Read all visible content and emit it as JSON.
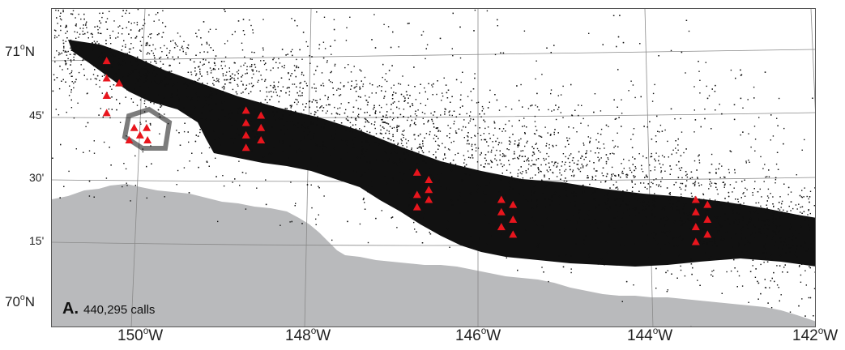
{
  "panel": {
    "letter": "A.",
    "caption": "440,295 calls"
  },
  "colors": {
    "land": "#b9babc",
    "sea": "#ffffff",
    "calls": "#111111",
    "recorders": "#e8151d",
    "grid": "#8a8a8a"
  },
  "latitude_labels": [
    {
      "deg": "71",
      "unit": "o",
      "hem": "N"
    },
    {
      "text": "45'"
    },
    {
      "text": "30'"
    },
    {
      "text": "15'"
    },
    {
      "deg": "70",
      "unit": "o",
      "hem": "N"
    }
  ],
  "longitude_labels": [
    {
      "deg": "150",
      "unit": "o",
      "hem": "W"
    },
    {
      "deg": "148",
      "unit": "o",
      "hem": "W"
    },
    {
      "deg": "146",
      "unit": "o",
      "hem": "W"
    },
    {
      "deg": "144",
      "unit": "o",
      "hem": "W"
    },
    {
      "deg": "142",
      "unit": "o",
      "hem": "W"
    }
  ],
  "recorder_sites": [
    {
      "lon": -150.45,
      "lat": 70.98
    },
    {
      "lon": -150.45,
      "lat": 70.91
    },
    {
      "lon": -150.3,
      "lat": 70.89
    },
    {
      "lon": -150.45,
      "lat": 70.84
    },
    {
      "lon": -150.45,
      "lat": 70.77
    },
    {
      "lon": -150.12,
      "lat": 70.71
    },
    {
      "lon": -149.97,
      "lat": 70.71
    },
    {
      "lon": -150.05,
      "lat": 70.68
    },
    {
      "lon": -150.18,
      "lat": 70.66
    },
    {
      "lon": -149.96,
      "lat": 70.66
    },
    {
      "lon": -148.78,
      "lat": 70.78
    },
    {
      "lon": -148.6,
      "lat": 70.76
    },
    {
      "lon": -148.78,
      "lat": 70.73
    },
    {
      "lon": -148.6,
      "lat": 70.71
    },
    {
      "lon": -148.78,
      "lat": 70.68
    },
    {
      "lon": -148.6,
      "lat": 70.66
    },
    {
      "lon": -148.78,
      "lat": 70.63
    },
    {
      "lon": -146.73,
      "lat": 70.53
    },
    {
      "lon": -146.59,
      "lat": 70.5
    },
    {
      "lon": -146.59,
      "lat": 70.46
    },
    {
      "lon": -146.73,
      "lat": 70.44
    },
    {
      "lon": -146.59,
      "lat": 70.42
    },
    {
      "lon": -146.73,
      "lat": 70.39
    },
    {
      "lon": -145.72,
      "lat": 70.42
    },
    {
      "lon": -145.58,
      "lat": 70.4
    },
    {
      "lon": -145.72,
      "lat": 70.37
    },
    {
      "lon": -145.58,
      "lat": 70.34
    },
    {
      "lon": -145.72,
      "lat": 70.31
    },
    {
      "lon": -145.58,
      "lat": 70.28
    },
    {
      "lon": -143.39,
      "lat": 70.42
    },
    {
      "lon": -143.25,
      "lat": 70.4
    },
    {
      "lon": -143.39,
      "lat": 70.37
    },
    {
      "lon": -143.25,
      "lat": 70.34
    },
    {
      "lon": -143.39,
      "lat": 70.31
    },
    {
      "lon": -143.25,
      "lat": 70.28
    },
    {
      "lon": -143.39,
      "lat": 70.25
    }
  ]
}
